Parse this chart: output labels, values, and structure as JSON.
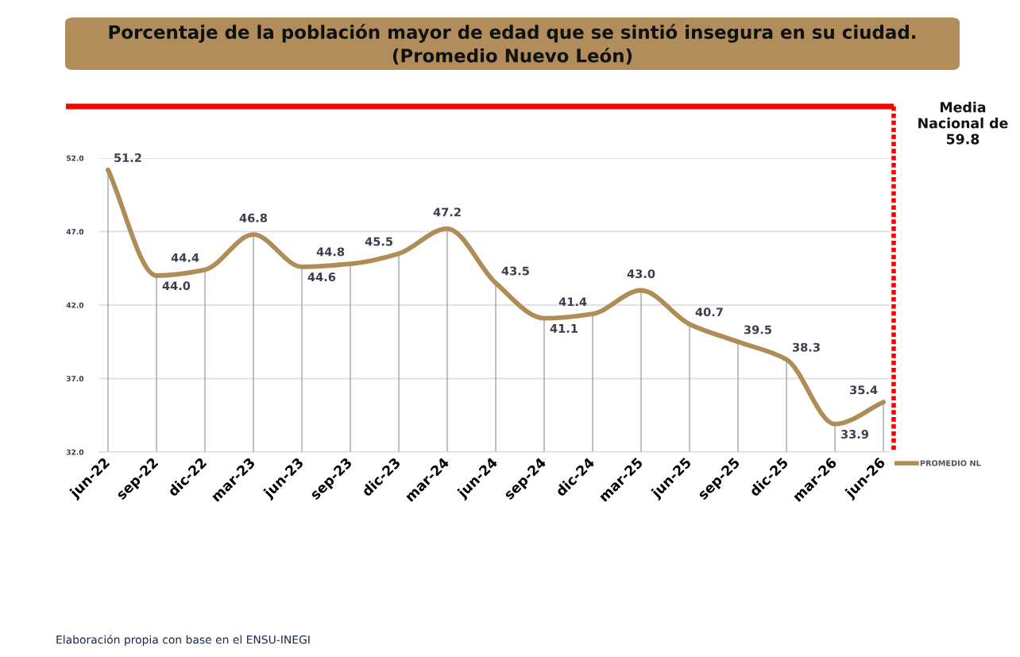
{
  "chart_data": {
    "type": "line",
    "title": "Porcentaje de la población mayor de edad que se sintió insegura en su ciudad.",
    "subtitle": "(Promedio Nuevo León)",
    "categories": [
      "jun-22",
      "sep-22",
      "dic-22",
      "mar-23",
      "jun-23",
      "sep-23",
      "dic-23",
      "mar-24",
      "jun-24",
      "sep-24",
      "dic-24",
      "mar-25",
      "jun-25",
      "sep-25",
      "dic-25",
      "mar-26",
      "jun-26"
    ],
    "series": [
      {
        "name": "PROMEDIO NL",
        "color": "#b08d57",
        "values": [
          51.2,
          44.0,
          44.4,
          46.8,
          44.6,
          44.8,
          45.5,
          47.2,
          43.5,
          41.1,
          41.4,
          43.0,
          40.7,
          39.5,
          38.3,
          33.9,
          35.4
        ],
        "value_labels": [
          "51.2",
          "44.0",
          "44.4",
          "46.8",
          "44.6",
          "44.8",
          "45.5",
          "47.2",
          "43.5",
          "41.1",
          "41.4",
          "43.0",
          "40.7",
          "39.5",
          "38.3",
          "33.9",
          "35.4"
        ]
      }
    ],
    "ylim": [
      32,
      52
    ],
    "yticks": [
      {
        "value": 32,
        "label": "32.0"
      },
      {
        "value": 37,
        "label": "37.0"
      },
      {
        "value": 42,
        "label": "42.0"
      },
      {
        "value": 47,
        "label": "47.0"
      },
      {
        "value": 52,
        "label": "52.0"
      }
    ],
    "grid": true,
    "legend": "bottom right",
    "marker": "none",
    "line_style": "solid",
    "annotations": [
      "Media Nacional de 59.8",
      "Elaboración propia con base en el ENSU-INEGI"
    ]
  }
}
